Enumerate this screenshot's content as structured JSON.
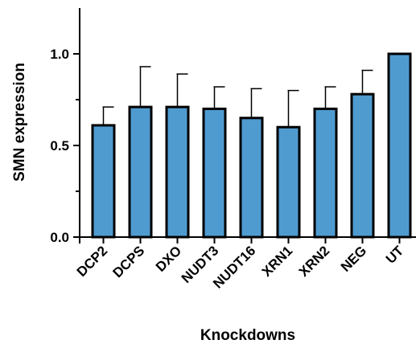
{
  "chart_data": {
    "type": "bar",
    "title": "",
    "xlabel": "Knockdowns",
    "ylabel": "SMN expression",
    "ylim": [
      0,
      1.25
    ],
    "yticks": [
      0.0,
      0.5,
      1.0
    ],
    "ytick_labels": [
      "0.0",
      "0.5",
      "1.0"
    ],
    "categories": [
      "DCP2",
      "DCPS",
      "DXO",
      "NUDT3",
      "NUDT16",
      "XRN1",
      "XRN2",
      "NEG",
      "UT"
    ],
    "values": [
      0.61,
      0.71,
      0.71,
      0.7,
      0.65,
      0.6,
      0.7,
      0.78,
      1.0
    ],
    "error_upper": [
      0.1,
      0.22,
      0.18,
      0.12,
      0.16,
      0.2,
      0.12,
      0.13,
      0.0
    ],
    "bar_color": "#4f9bd0",
    "grid": false,
    "legend": "none"
  }
}
